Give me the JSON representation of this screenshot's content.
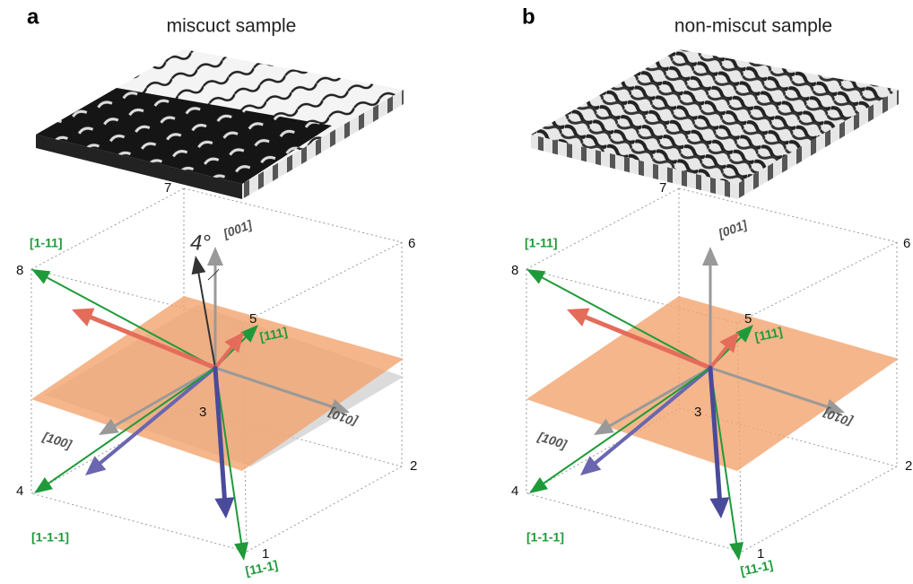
{
  "panels": [
    {
      "letter": "a",
      "title": "miscuct sample",
      "tilt": "4°",
      "corners": [
        "7",
        "6",
        "8",
        "5",
        "3",
        "2",
        "4",
        "1"
      ],
      "directions": [
        "[001]",
        "[1-11]",
        "[111]",
        "[100]",
        "[010]",
        "[1-1-1]",
        "[11-1]"
      ]
    },
    {
      "letter": "b",
      "title": "non-miscut sample",
      "corners": [
        "7",
        "6",
        "8",
        "5",
        "3",
        "2",
        "4",
        "1"
      ],
      "directions": [
        "[001]",
        "[1-11]",
        "[111]",
        "[100]",
        "[010]",
        "[1-1-1]",
        "[11-1]"
      ]
    }
  ]
}
